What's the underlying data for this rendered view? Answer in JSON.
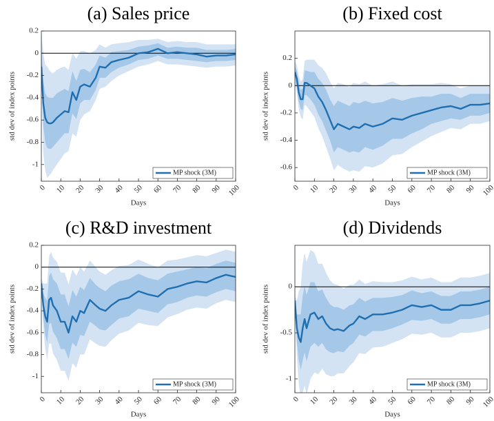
{
  "chart_data": [
    {
      "type": "line",
      "title": "(a) Sales price",
      "xlabel": "Days",
      "ylabel": "std dev of index points",
      "x": [
        0,
        1,
        2,
        3,
        4,
        5,
        6,
        8,
        10,
        12,
        14,
        16,
        18,
        20,
        22,
        25,
        28,
        30,
        33,
        36,
        40,
        45,
        50,
        55,
        60,
        65,
        70,
        75,
        80,
        85,
        90,
        95,
        100
      ],
      "xlim": [
        0,
        100
      ],
      "xticks": [
        0,
        10,
        20,
        30,
        40,
        50,
        60,
        70,
        80,
        90,
        100
      ],
      "ylim": [
        -1.15,
        0.2
      ],
      "yticks": [
        -1,
        -0.8,
        -0.6,
        -0.4,
        -0.2,
        0,
        0.2
      ],
      "zero_line": true,
      "legend": "lower right",
      "series": [
        {
          "name": "MP shock (3M)",
          "color": "#1f6eb0",
          "values": [
            -0.12,
            -0.45,
            -0.58,
            -0.62,
            -0.63,
            -0.63,
            -0.62,
            -0.58,
            -0.55,
            -0.52,
            -0.53,
            -0.35,
            -0.42,
            -0.3,
            -0.28,
            -0.3,
            -0.22,
            -0.12,
            -0.13,
            -0.08,
            -0.06,
            -0.04,
            0,
            0.01,
            0.04,
            0,
            0.01,
            0,
            -0.01,
            -0.03,
            -0.02,
            -0.02,
            -0.01
          ]
        }
      ],
      "bands": [
        {
          "color": "#d3e3f3",
          "lower": [
            -0.2,
            -0.9,
            -1.05,
            -1.12,
            -1.1,
            -1.08,
            -1.05,
            -1.0,
            -0.95,
            -0.9,
            -0.88,
            -0.72,
            -0.75,
            -0.6,
            -0.55,
            -0.52,
            -0.42,
            -0.32,
            -0.3,
            -0.25,
            -0.2,
            -0.16,
            -0.12,
            -0.1,
            -0.07,
            -0.1,
            -0.1,
            -0.11,
            -0.12,
            -0.13,
            -0.12,
            -0.12,
            -0.11
          ],
          "upper": [
            0.2,
            0.0,
            -0.1,
            -0.12,
            -0.15,
            -0.17,
            -0.18,
            -0.15,
            -0.13,
            -0.12,
            -0.15,
            0.0,
            -0.05,
            0.02,
            0.02,
            0.0,
            0.03,
            0.08,
            0.05,
            0.08,
            0.09,
            0.1,
            0.12,
            0.12,
            0.13,
            0.1,
            0.11,
            0.1,
            0.1,
            0.08,
            0.08,
            0.08,
            0.08
          ]
        },
        {
          "color": "#a6c8e8",
          "lower": [
            -0.16,
            -0.65,
            -0.8,
            -0.85,
            -0.86,
            -0.86,
            -0.84,
            -0.8,
            -0.76,
            -0.72,
            -0.72,
            -0.54,
            -0.59,
            -0.45,
            -0.42,
            -0.42,
            -0.33,
            -0.22,
            -0.22,
            -0.17,
            -0.13,
            -0.1,
            -0.06,
            -0.05,
            -0.02,
            -0.05,
            -0.05,
            -0.06,
            -0.07,
            -0.08,
            -0.07,
            -0.07,
            -0.06
          ],
          "upper": [
            0.08,
            -0.25,
            -0.36,
            -0.39,
            -0.4,
            -0.4,
            -0.4,
            -0.36,
            -0.34,
            -0.32,
            -0.34,
            -0.16,
            -0.25,
            -0.15,
            -0.14,
            -0.17,
            -0.1,
            -0.02,
            -0.04,
            0.01,
            0.02,
            0.03,
            0.06,
            0.07,
            0.09,
            0.05,
            0.06,
            0.05,
            0.05,
            0.03,
            0.03,
            0.03,
            0.04
          ]
        }
      ]
    },
    {
      "type": "line",
      "title": "(b) Fixed cost",
      "xlabel": "Days",
      "ylabel": "std dev of index points",
      "x": [
        0,
        1,
        2,
        3,
        4,
        5,
        6,
        8,
        10,
        12,
        14,
        16,
        18,
        20,
        22,
        25,
        28,
        30,
        33,
        36,
        40,
        45,
        50,
        55,
        60,
        65,
        70,
        75,
        80,
        85,
        90,
        95,
        100
      ],
      "xlim": [
        0,
        100
      ],
      "xticks": [
        0,
        10,
        20,
        30,
        40,
        50,
        60,
        70,
        80,
        90,
        100
      ],
      "ylim": [
        -0.7,
        0.4
      ],
      "yticks": [
        -0.6,
        -0.4,
        -0.2,
        0,
        0.2
      ],
      "zero_line": true,
      "legend": "lower right",
      "series": [
        {
          "name": "MP shock (3M)",
          "color": "#1f6eb0",
          "values": [
            0.1,
            0.05,
            -0.05,
            -0.1,
            -0.1,
            0.02,
            0.02,
            0.0,
            -0.02,
            -0.08,
            -0.12,
            -0.18,
            -0.25,
            -0.32,
            -0.28,
            -0.3,
            -0.32,
            -0.3,
            -0.31,
            -0.28,
            -0.3,
            -0.28,
            -0.24,
            -0.25,
            -0.22,
            -0.2,
            -0.18,
            -0.16,
            -0.15,
            -0.17,
            -0.14,
            -0.14,
            -0.13
          ]
        }
      ],
      "bands": [
        {
          "color": "#d3e3f3",
          "lower": [
            0.02,
            -0.05,
            -0.17,
            -0.23,
            -0.25,
            -0.14,
            -0.15,
            -0.19,
            -0.23,
            -0.31,
            -0.37,
            -0.45,
            -0.53,
            -0.62,
            -0.58,
            -0.61,
            -0.63,
            -0.62,
            -0.63,
            -0.59,
            -0.6,
            -0.57,
            -0.51,
            -0.5,
            -0.45,
            -0.41,
            -0.37,
            -0.34,
            -0.31,
            -0.32,
            -0.28,
            -0.28,
            -0.26
          ],
          "upper": [
            0.18,
            0.15,
            0.07,
            0.03,
            0.05,
            0.18,
            0.19,
            0.19,
            0.19,
            0.15,
            0.13,
            0.09,
            0.03,
            -0.02,
            0.02,
            0.01,
            -0.01,
            0.02,
            0.01,
            0.03,
            0,
            0.01,
            0.03,
            0,
            0.01,
            0.01,
            0.01,
            0.02,
            0.01,
            -0.02,
            0,
            0,
            0
          ]
        },
        {
          "color": "#a6c8e8",
          "lower": [
            0.06,
            -0.01,
            -0.12,
            -0.17,
            -0.18,
            -0.07,
            -0.07,
            -0.1,
            -0.14,
            -0.21,
            -0.26,
            -0.33,
            -0.4,
            -0.49,
            -0.45,
            -0.47,
            -0.49,
            -0.48,
            -0.49,
            -0.45,
            -0.47,
            -0.44,
            -0.39,
            -0.39,
            -0.35,
            -0.32,
            -0.28,
            -0.26,
            -0.24,
            -0.25,
            -0.22,
            -0.22,
            -0.2
          ],
          "upper": [
            0.14,
            0.11,
            0.02,
            -0.03,
            -0.02,
            0.11,
            0.11,
            0.1,
            0.1,
            0.05,
            0.02,
            -0.03,
            -0.1,
            -0.15,
            -0.11,
            -0.13,
            -0.15,
            -0.12,
            -0.13,
            -0.11,
            -0.13,
            -0.12,
            -0.09,
            -0.11,
            -0.09,
            -0.08,
            -0.08,
            -0.06,
            -0.06,
            -0.09,
            -0.06,
            -0.06,
            -0.06
          ]
        }
      ]
    },
    {
      "type": "line",
      "title": "(c) R&D investment",
      "xlabel": "Days",
      "ylabel": "std dev of index points",
      "x": [
        0,
        1,
        2,
        3,
        4,
        5,
        6,
        8,
        10,
        12,
        14,
        16,
        18,
        20,
        22,
        25,
        28,
        30,
        33,
        36,
        40,
        45,
        50,
        55,
        60,
        65,
        70,
        75,
        80,
        85,
        90,
        95,
        100
      ],
      "xlim": [
        0,
        100
      ],
      "xticks": [
        0,
        10,
        20,
        30,
        40,
        50,
        60,
        70,
        80,
        90,
        100
      ],
      "ylim": [
        -1.15,
        0.2
      ],
      "yticks": [
        -1,
        -0.8,
        -0.6,
        -0.4,
        -0.2,
        0,
        0.2
      ],
      "zero_line": true,
      "legend": "lower right",
      "series": [
        {
          "name": "MP shock (3M)",
          "color": "#1f6eb0",
          "values": [
            -0.15,
            -0.35,
            -0.45,
            -0.5,
            -0.3,
            -0.28,
            -0.35,
            -0.4,
            -0.5,
            -0.5,
            -0.6,
            -0.45,
            -0.5,
            -0.4,
            -0.42,
            -0.3,
            -0.35,
            -0.38,
            -0.4,
            -0.35,
            -0.3,
            -0.28,
            -0.22,
            -0.25,
            -0.27,
            -0.2,
            -0.18,
            -0.15,
            -0.13,
            -0.14,
            -0.1,
            -0.07,
            -0.09
          ]
        }
      ],
      "bands": [
        {
          "color": "#d3e3f3",
          "lower": [
            -0.2,
            -0.55,
            -0.75,
            -0.85,
            -0.7,
            -0.7,
            -0.79,
            -0.85,
            -0.95,
            -0.95,
            -1.04,
            -0.88,
            -0.92,
            -0.8,
            -0.8,
            -0.66,
            -0.7,
            -0.72,
            -0.73,
            -0.67,
            -0.61,
            -0.58,
            -0.51,
            -0.53,
            -0.54,
            -0.46,
            -0.43,
            -0.39,
            -0.37,
            -0.38,
            -0.33,
            -0.3,
            -0.32
          ],
          "upper": [
            -0.1,
            -0.15,
            -0.15,
            -0.15,
            0.1,
            0.14,
            0.09,
            0.05,
            -0.05,
            -0.05,
            -0.16,
            -0.02,
            -0.08,
            0,
            -0.04,
            0.06,
            0,
            -0.04,
            -0.07,
            -0.03,
            0.01,
            0.02,
            0.07,
            0.03,
            0,
            0.06,
            0.07,
            0.09,
            0.11,
            0.1,
            0.13,
            0.16,
            0.14
          ]
        },
        {
          "color": "#a6c8e8",
          "lower": [
            -0.18,
            -0.46,
            -0.62,
            -0.69,
            -0.52,
            -0.51,
            -0.59,
            -0.65,
            -0.75,
            -0.75,
            -0.84,
            -0.69,
            -0.73,
            -0.62,
            -0.63,
            -0.5,
            -0.54,
            -0.57,
            -0.58,
            -0.53,
            -0.47,
            -0.45,
            -0.38,
            -0.4,
            -0.42,
            -0.34,
            -0.32,
            -0.28,
            -0.26,
            -0.27,
            -0.23,
            -0.2,
            -0.22
          ],
          "upper": [
            -0.12,
            -0.24,
            -0.28,
            -0.31,
            -0.08,
            -0.05,
            -0.11,
            -0.15,
            -0.25,
            -0.25,
            -0.36,
            -0.21,
            -0.27,
            -0.18,
            -0.21,
            -0.1,
            -0.16,
            -0.19,
            -0.22,
            -0.17,
            -0.13,
            -0.11,
            -0.06,
            -0.1,
            -0.12,
            -0.06,
            -0.04,
            -0.02,
            0,
            -0.01,
            0.03,
            0.06,
            0.04
          ]
        }
      ]
    },
    {
      "type": "line",
      "title": "(d) Dividends",
      "xlabel": "Days",
      "ylabel": "std dev of index points",
      "x": [
        0,
        1,
        2,
        3,
        4,
        5,
        6,
        8,
        10,
        12,
        14,
        16,
        18,
        20,
        22,
        25,
        28,
        30,
        33,
        36,
        40,
        45,
        50,
        55,
        60,
        65,
        70,
        75,
        80,
        85,
        90,
        95,
        100
      ],
      "xlim": [
        0,
        100
      ],
      "xticks": [
        0,
        10,
        20,
        30,
        40,
        50,
        60,
        70,
        80,
        90,
        100
      ],
      "ylim": [
        -1.15,
        0.45
      ],
      "yticks": [
        -1,
        -0.5,
        0
      ],
      "zero_line": true,
      "legend": "lower right",
      "series": [
        {
          "name": "MP shock (3M)",
          "color": "#1f6eb0",
          "values": [
            -0.15,
            -0.45,
            -0.55,
            -0.6,
            -0.45,
            -0.35,
            -0.45,
            -0.3,
            -0.28,
            -0.35,
            -0.32,
            -0.4,
            -0.45,
            -0.47,
            -0.46,
            -0.48,
            -0.42,
            -0.4,
            -0.32,
            -0.35,
            -0.3,
            -0.3,
            -0.28,
            -0.25,
            -0.2,
            -0.22,
            -0.2,
            -0.25,
            -0.25,
            -0.2,
            -0.2,
            -0.18,
            -0.15
          ]
        }
      ],
      "bands": [
        {
          "color": "#d3e3f3",
          "lower": [
            -0.2,
            -0.75,
            -1.05,
            -1.2,
            -1.15,
            -1.07,
            -1.17,
            -1.0,
            -0.93,
            -0.95,
            -0.89,
            -0.95,
            -0.97,
            -0.97,
            -0.94,
            -0.94,
            -0.86,
            -0.82,
            -0.72,
            -0.73,
            -0.66,
            -0.65,
            -0.61,
            -0.57,
            -0.51,
            -0.52,
            -0.5,
            -0.55,
            -0.55,
            -0.5,
            -0.5,
            -0.48,
            -0.45
          ],
          "upper": [
            -0.1,
            -0.15,
            -0.05,
            0,
            0.25,
            0.37,
            0.27,
            0.4,
            0.37,
            0.25,
            0.25,
            0.15,
            0.07,
            0.03,
            0.02,
            -0.02,
            0.02,
            0.02,
            0.08,
            0.03,
            0.06,
            0.05,
            0.05,
            0.07,
            0.11,
            0.08,
            0.1,
            0.05,
            0.05,
            0.1,
            0.1,
            0.12,
            0.15
          ]
        },
        {
          "color": "#a6c8e8",
          "lower": [
            -0.18,
            -0.6,
            -0.8,
            -0.9,
            -0.8,
            -0.71,
            -0.81,
            -0.65,
            -0.61,
            -0.65,
            -0.61,
            -0.68,
            -0.71,
            -0.72,
            -0.7,
            -0.71,
            -0.64,
            -0.61,
            -0.52,
            -0.54,
            -0.48,
            -0.48,
            -0.45,
            -0.41,
            -0.36,
            -0.37,
            -0.35,
            -0.4,
            -0.4,
            -0.35,
            -0.35,
            -0.33,
            -0.3
          ],
          "upper": [
            -0.12,
            -0.3,
            -0.3,
            -0.3,
            -0.1,
            0.01,
            -0.09,
            0.05,
            0.05,
            -0.05,
            -0.03,
            -0.12,
            -0.19,
            -0.22,
            -0.22,
            -0.25,
            -0.2,
            -0.19,
            -0.12,
            -0.16,
            -0.12,
            -0.12,
            -0.11,
            -0.09,
            -0.04,
            -0.07,
            -0.05,
            -0.1,
            -0.1,
            -0.05,
            -0.05,
            -0.03,
            0
          ]
        }
      ]
    }
  ]
}
